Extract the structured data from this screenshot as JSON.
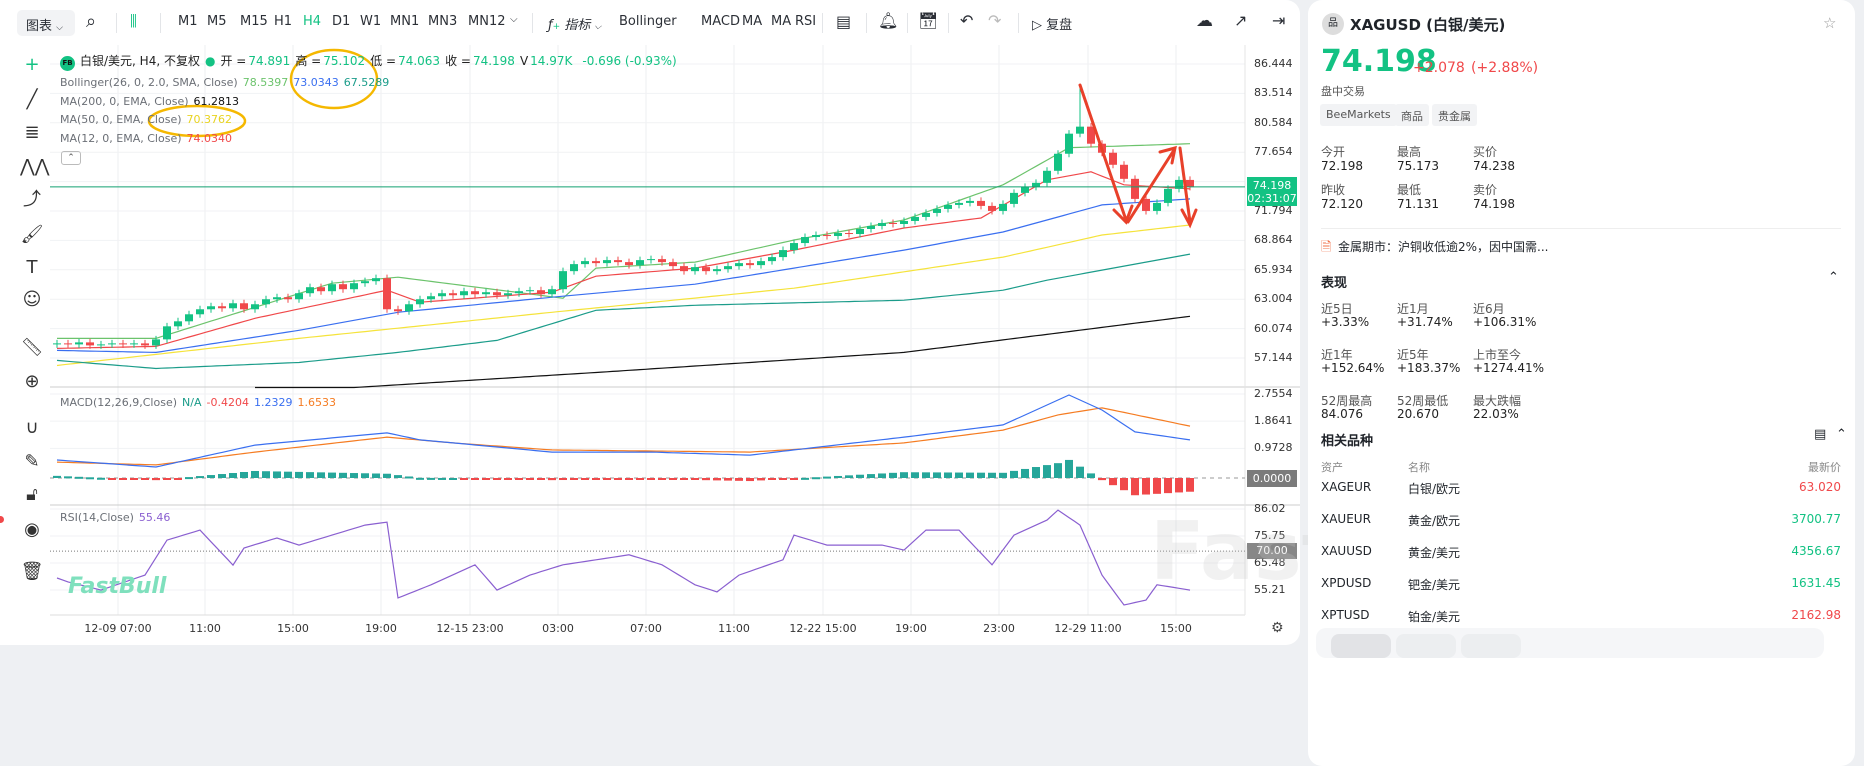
{
  "toolbar": {
    "chart_menu": "图表",
    "timeframes": [
      "M1",
      "M5",
      "M15",
      "H1",
      "H4",
      "D1",
      "W1",
      "MN1",
      "MN3",
      "MN12"
    ],
    "active_timeframe": "H4",
    "indicators_label": "指标",
    "indicator_shortcuts": [
      "Bollinger",
      "MACD",
      "MA",
      "MA",
      "RSI"
    ],
    "replay_label": "复盘"
  },
  "legend": {
    "symbol_badge": "FB",
    "title": "白银/美元, H4, 不复权",
    "ohlc": [
      {
        "k": "开 =",
        "v": "74.891"
      },
      {
        "k": "高 =",
        "v": "75.102"
      },
      {
        "k": "低 =",
        "v": "74.063"
      },
      {
        "k": "收 =",
        "v": "74.198"
      },
      {
        "k": "V",
        "v": "14.97K"
      }
    ],
    "change": "-0.696 (-0.93%)",
    "bollinger": {
      "label": "Bollinger(26, 0, 2.0, SMA, Close)",
      "upper": "78.5397",
      "mid": "73.0343",
      "lower": "67.5289"
    },
    "ma200": {
      "label": "MA(200, 0, EMA, Close)",
      "value": "61.2813"
    },
    "ma50": {
      "label": "MA(50, 0, EMA, Close)",
      "value": "70.3762"
    },
    "ma12": {
      "label": "MA(12, 0, EMA, Close)",
      "value": "74.0340"
    },
    "macd": {
      "label": "MACD(12,26,9,Close)",
      "na": "N/A",
      "hist": "-0.4204",
      "macd": "1.2329",
      "signal": "1.6533"
    },
    "rsi": {
      "label": "RSI(14,Close)",
      "value": "55.46"
    }
  },
  "price_tag": {
    "price": "74.198",
    "countdown": "02:31:07"
  },
  "macd_zero_tag": "0.0000",
  "rsi_level_tag": "70.00",
  "watermark": "FastBull",
  "colors": {
    "up": "#13c283",
    "down": "#f0484a",
    "bb_upper": "#6cc36c",
    "bb_mid": "#3a6ff0",
    "bb_lower": "#1b9c8a",
    "ma12": "#f0484a",
    "ma50": "#f5e33b",
    "ma200": "#111111",
    "macd": "#3a6ff0",
    "signal": "#f57c22",
    "rsi": "#8a5fd0",
    "annotation": "#f5b800",
    "arrow": "#e8402a"
  },
  "chart_data": [
    {
      "type": "candlestick",
      "pane": "price",
      "ylim": [
        54.2,
        87.5
      ],
      "y_ticks": [
        "86.444",
        "83.514",
        "80.584",
        "77.654",
        "74.724",
        "71.794",
        "68.864",
        "65.934",
        "63.004",
        "60.074",
        "57.144"
      ],
      "x_ticks": [
        "12-09 07:00",
        "11:00",
        "15:00",
        "19:00",
        "12-15 23:00",
        "03:00",
        "07:00",
        "11:00",
        "12-22 15:00",
        "19:00",
        "23:00",
        "12-29 11:00",
        "15:00"
      ],
      "first_open": 58.5,
      "peak_high": 84.076,
      "close": [
        58.6,
        58.5,
        58.7,
        58.4,
        58.5,
        58.6,
        58.5,
        58.6,
        58.4,
        59.0,
        60.3,
        60.8,
        61.5,
        62.0,
        62.3,
        62.1,
        62.6,
        62.0,
        62.5,
        63.0,
        63.2,
        63.0,
        63.6,
        64.2,
        63.8,
        64.5,
        64.0,
        64.6,
        64.8,
        65.1,
        62.0,
        61.8,
        62.5,
        63.0,
        63.3,
        63.6,
        63.4,
        63.8,
        63.5,
        63.7,
        63.4,
        63.6,
        63.8,
        63.9,
        63.5,
        64.0,
        65.8,
        66.5,
        66.8,
        66.6,
        66.9,
        66.7,
        66.4,
        66.9,
        67.0,
        66.7,
        66.3,
        65.8,
        66.2,
        65.8,
        66.0,
        66.3,
        66.6,
        66.4,
        66.8,
        67.2,
        67.9,
        68.6,
        69.2,
        69.4,
        69.3,
        69.6,
        69.5,
        70.0,
        70.3,
        70.6,
        70.5,
        70.8,
        71.2,
        71.6,
        72.0,
        72.4,
        72.6,
        72.8,
        72.3,
        71.8,
        72.5,
        73.6,
        74.2,
        74.6,
        75.8,
        77.5,
        79.5,
        80.2,
        78.5,
        77.6,
        76.4,
        75.0,
        73.0,
        71.8,
        72.6,
        74.0,
        74.891,
        74.198
      ],
      "series": [
        {
          "key": "bb_upper",
          "points": [
            [
              0,
              59.1
            ],
            [
              9,
              59.1
            ],
            [
              25,
              64.6
            ],
            [
              31,
              65.2
            ],
            [
              46,
              63.1
            ],
            [
              49,
              66.1
            ],
            [
              58,
              66.7
            ],
            [
              67,
              68.9
            ],
            [
              77,
              70.9
            ],
            [
              86,
              74.4
            ],
            [
              92,
              78.1
            ],
            [
              103,
              78.5
            ]
          ]
        },
        {
          "key": "ma12",
          "points": [
            [
              0,
              58.1
            ],
            [
              9,
              58.3
            ],
            [
              18,
              61.1
            ],
            [
              30,
              63.9
            ],
            [
              33,
              62.7
            ],
            [
              45,
              63.7
            ],
            [
              49,
              65.3
            ],
            [
              58,
              66.1
            ],
            [
              67,
              67.9
            ],
            [
              77,
              70.1
            ],
            [
              84,
              71.1
            ],
            [
              90,
              74.9
            ],
            [
              94,
              75.7
            ],
            [
              97,
              74.4
            ],
            [
              103,
              74.0
            ]
          ]
        },
        {
          "key": "bb_mid",
          "points": [
            [
              0,
              57.9
            ],
            [
              9,
              57.7
            ],
            [
              22,
              59.9
            ],
            [
              31,
              61.7
            ],
            [
              45,
              63.2
            ],
            [
              58,
              64.5
            ],
            [
              67,
              66.1
            ],
            [
              77,
              67.9
            ],
            [
              86,
              69.7
            ],
            [
              95,
              72.4
            ],
            [
              103,
              73.0
            ]
          ]
        },
        {
          "key": "ma50",
          "points": [
            [
              0,
              56.4
            ],
            [
              22,
              59.1
            ],
            [
              45,
              61.7
            ],
            [
              67,
              64.1
            ],
            [
              86,
              67.2
            ],
            [
              95,
              69.4
            ],
            [
              103,
              70.4
            ]
          ]
        },
        {
          "key": "ma200",
          "points": [
            [
              18,
              54.2
            ],
            [
              27,
              54.2
            ],
            [
              49,
              55.7
            ],
            [
              77,
              57.7
            ],
            [
              103,
              61.3
            ]
          ]
        },
        {
          "key": "bb_lower",
          "points": [
            [
              0,
              56.9
            ],
            [
              9,
              56.1
            ],
            [
              22,
              56.7
            ],
            [
              31,
              57.7
            ],
            [
              40,
              58.9
            ],
            [
              49,
              61.9
            ],
            [
              58,
              62.4
            ],
            [
              77,
              62.9
            ],
            [
              86,
              63.9
            ],
            [
              90,
              64.9
            ],
            [
              95,
              65.9
            ],
            [
              103,
              67.5
            ]
          ]
        }
      ]
    },
    {
      "type": "line",
      "pane": "macd",
      "y_ticks": [
        "2.7554",
        "1.8641",
        "0.9728"
      ],
      "series": [
        {
          "key": "macd",
          "points": [
            [
              0,
              0.59
            ],
            [
              9,
              0.36
            ],
            [
              18,
              1.08
            ],
            [
              30,
              1.48
            ],
            [
              33,
              1.25
            ],
            [
              45,
              0.85
            ],
            [
              54,
              0.85
            ],
            [
              63,
              0.75
            ],
            [
              67,
              0.92
            ],
            [
              77,
              1.34
            ],
            [
              86,
              1.74
            ],
            [
              92,
              2.72
            ],
            [
              95,
              2.23
            ],
            [
              98,
              1.51
            ],
            [
              103,
              1.25
            ]
          ]
        },
        {
          "key": "signal",
          "points": [
            [
              0,
              0.52
            ],
            [
              9,
              0.43
            ],
            [
              18,
              0.85
            ],
            [
              30,
              1.34
            ],
            [
              36,
              1.15
            ],
            [
              45,
              0.92
            ],
            [
              63,
              0.85
            ],
            [
              77,
              1.15
            ],
            [
              86,
              1.57
            ],
            [
              91,
              2.07
            ],
            [
              95,
              2.3
            ],
            [
              103,
              1.7
            ]
          ]
        }
      ]
    },
    {
      "type": "line",
      "pane": "rsi",
      "y_ticks": [
        "86.02",
        "75.75",
        "65.48",
        "55.21"
      ],
      "level": 70,
      "series": [
        {
          "key": "rsi",
          "points": [
            [
              0,
              59.8
            ],
            [
              1,
              58.3
            ],
            [
              4,
              55.2
            ],
            [
              8,
              60.9
            ],
            [
              10,
              74.2
            ],
            [
              13,
              78.0
            ],
            [
              16,
              64.7
            ],
            [
              17,
              71.2
            ],
            [
              20,
              75.0
            ],
            [
              22,
              72.3
            ],
            [
              25,
              76.1
            ],
            [
              28,
              79.9
            ],
            [
              30,
              81.0
            ],
            [
              31,
              52.2
            ],
            [
              34,
              57.2
            ],
            [
              37,
              62.9
            ],
            [
              38,
              64.8
            ],
            [
              40,
              55.2
            ],
            [
              43,
              60.9
            ],
            [
              46,
              64.8
            ],
            [
              49,
              66.7
            ],
            [
              52,
              68.6
            ],
            [
              55,
              64.8
            ],
            [
              58,
              57.2
            ],
            [
              60,
              54.5
            ],
            [
              62,
              60.9
            ],
            [
              66,
              66.7
            ],
            [
              67,
              76.1
            ],
            [
              70,
              72.3
            ],
            [
              75,
              72.3
            ],
            [
              77,
              70.4
            ],
            [
              79,
              78.0
            ],
            [
              82,
              78.0
            ],
            [
              85,
              64.8
            ],
            [
              87,
              76.1
            ],
            [
              90,
              81.8
            ],
            [
              91,
              85.6
            ],
            [
              93,
              79.9
            ],
            [
              95,
              60.9
            ],
            [
              97,
              49.5
            ],
            [
              99,
              51.4
            ],
            [
              100,
              57.2
            ],
            [
              103,
              55.2
            ]
          ]
        }
      ]
    }
  ],
  "quote": {
    "symbol": "XAGUSD (白银/美元)",
    "price": "74.198",
    "change": "+2.078",
    "change_pct": "(+2.88%)",
    "session": "盘中交易",
    "tags": [
      "BeeMarkets",
      "商品",
      "贵金属"
    ],
    "stats": [
      {
        "label": "今开",
        "value": "72.198",
        "color": "g"
      },
      {
        "label": "最高",
        "value": "75.173",
        "color": ""
      },
      {
        "label": "买价",
        "value": "74.238",
        "color": "g"
      },
      {
        "label": "昨收",
        "value": "72.120",
        "color": ""
      },
      {
        "label": "最低",
        "value": "71.131",
        "color": ""
      },
      {
        "label": "卖价",
        "value": "74.198",
        "color": "g"
      }
    ],
    "news": "金属期市：沪铜收低逾2%，因中国需..."
  },
  "performance": {
    "title": "表现",
    "items": [
      {
        "label": "近5日",
        "value": "+3.33%"
      },
      {
        "label": "近1月",
        "value": "+31.74%"
      },
      {
        "label": "近6月",
        "value": "+106.31%"
      },
      {
        "label": "近1年",
        "value": "+152.64%"
      },
      {
        "label": "近5年",
        "value": "+183.37%"
      },
      {
        "label": "上市至今",
        "value": "+1274.41%"
      },
      {
        "label": "52周最高",
        "value": "84.076"
      },
      {
        "label": "52周最低",
        "value": "20.670"
      },
      {
        "label": "最大跌幅",
        "value": "22.03%"
      }
    ]
  },
  "related": {
    "title": "相关品种",
    "headers": [
      "资产",
      "名称",
      "最新价"
    ],
    "rows": [
      {
        "asset": "XAGEUR",
        "name": "白银/欧元",
        "price": "63.020",
        "dir": "r"
      },
      {
        "asset": "XAUEUR",
        "name": "黄金/欧元",
        "price": "3700.77",
        "dir": "g"
      },
      {
        "asset": "XAUUSD",
        "name": "黄金/美元",
        "price": "4356.67",
        "dir": "g"
      },
      {
        "asset": "XPDUSD",
        "name": "钯金/美元",
        "price": "1631.45",
        "dir": "g"
      },
      {
        "asset": "XPTUSD",
        "name": "铂金/美元",
        "price": "2162.98",
        "dir": "r"
      }
    ]
  }
}
